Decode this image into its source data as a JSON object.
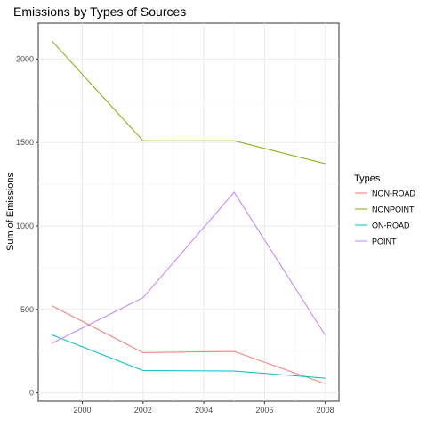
{
  "chart_data": {
    "type": "line",
    "title": "Emissions by Types of Sources",
    "xlabel": "",
    "ylabel": "Sum of Emissions",
    "x": [
      1999,
      2002,
      2005,
      2008
    ],
    "xlim": [
      1998.55,
      2008.45
    ],
    "ylim": [
      -50,
      2215
    ],
    "x_ticks": [
      2000,
      2002,
      2004,
      2006,
      2008
    ],
    "y_ticks": [
      0,
      500,
      1000,
      1500,
      2000
    ],
    "grid": true,
    "legend": {
      "title": "Types",
      "placement": "right"
    },
    "series": [
      {
        "name": "NON-ROAD",
        "color": "#F8766D",
        "values": [
          522,
          241,
          248,
          55
        ]
      },
      {
        "name": "NONPOINT",
        "color": "#7CAE00",
        "values": [
          2108,
          1510,
          1510,
          1373
        ]
      },
      {
        "name": "ON-ROAD",
        "color": "#00BFC4",
        "values": [
          347,
          134,
          131,
          88
        ]
      },
      {
        "name": "POINT",
        "color": "#C77CFF",
        "values": [
          297,
          570,
          1202,
          345
        ]
      }
    ]
  }
}
